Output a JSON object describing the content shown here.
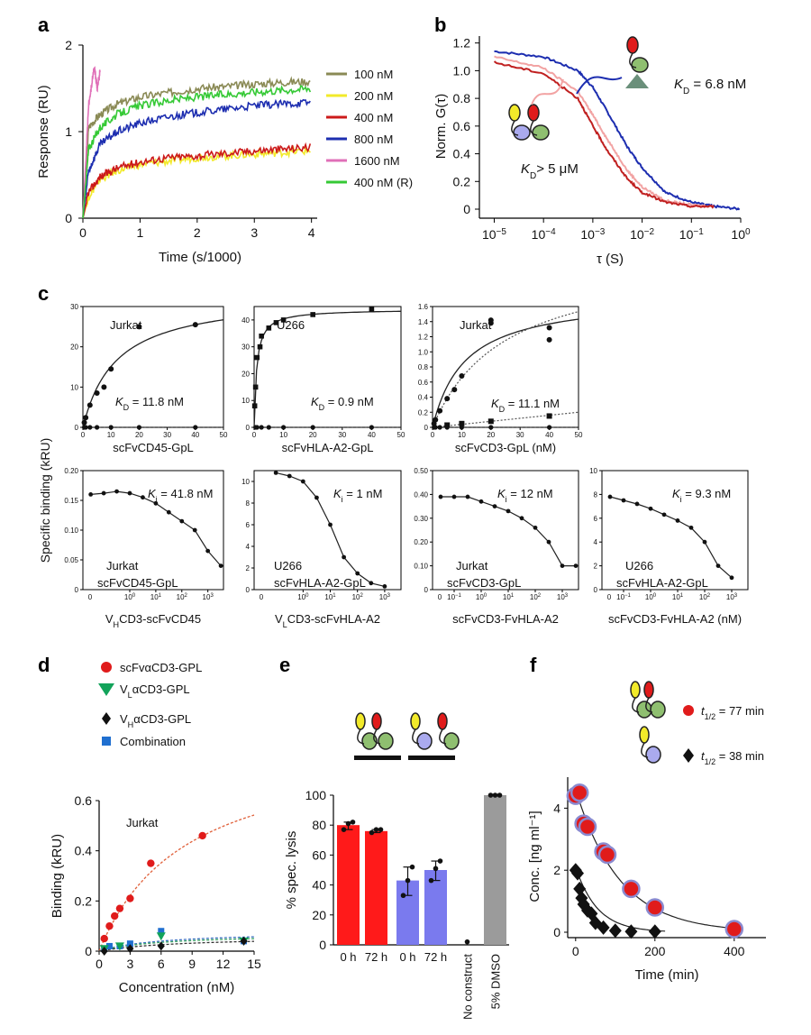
{
  "panels": {
    "a": "a",
    "b": "b",
    "c": "c",
    "d": "d",
    "e": "e",
    "f": "f"
  },
  "colors": {
    "red": "#e01b1b",
    "blue": "#1d2eb0",
    "green": "#35c935",
    "pink": "#e070b8",
    "olive": "#8a8a55",
    "yellow": "#f2ea2a",
    "gray": "#9b9b9b",
    "lilac": "#7d7de8",
    "salmon": "#f2a3a3"
  },
  "chart_data": [
    {
      "id": "a",
      "type": "line",
      "xlabel": "Time (s/1000)",
      "ylabel": "Response (RU)",
      "xlim": [
        0,
        4.1
      ],
      "ylim": [
        0,
        2
      ],
      "xticks": [
        0,
        1,
        2,
        3,
        4
      ],
      "yticks": [
        0,
        1,
        2
      ],
      "series": [
        {
          "name": "100 nM",
          "color": "#8a8a55",
          "x": [
            0,
            0.1,
            0.3,
            0.6,
            1,
            1.5,
            2,
            2.5,
            3,
            3.5,
            4
          ],
          "y": [
            0,
            1.05,
            1.2,
            1.32,
            1.4,
            1.45,
            1.5,
            1.52,
            1.55,
            1.57,
            1.58
          ]
        },
        {
          "name": "200 nM",
          "color": "#f2ea2a",
          "x": [
            0,
            0.1,
            0.3,
            0.6,
            1,
            1.5,
            2,
            2.5,
            3,
            3.5,
            4
          ],
          "y": [
            0,
            0.25,
            0.45,
            0.55,
            0.62,
            0.66,
            0.7,
            0.72,
            0.74,
            0.76,
            0.78
          ]
        },
        {
          "name": "400 nM",
          "color": "#cc1a1a",
          "x": [
            0,
            0.1,
            0.3,
            0.6,
            1,
            1.5,
            2,
            2.5,
            3,
            3.5,
            4
          ],
          "y": [
            0,
            0.3,
            0.48,
            0.58,
            0.65,
            0.7,
            0.72,
            0.75,
            0.78,
            0.8,
            0.82
          ]
        },
        {
          "name": "800 nM",
          "color": "#1d2eb0",
          "x": [
            0,
            0.1,
            0.3,
            0.6,
            1,
            1.5,
            2,
            2.5,
            3,
            3.5,
            4
          ],
          "y": [
            0,
            0.55,
            0.85,
            1.0,
            1.1,
            1.17,
            1.22,
            1.26,
            1.3,
            1.32,
            1.34
          ]
        },
        {
          "name": "1600 nM",
          "color": "#e070b8",
          "x": [
            0,
            0.1,
            0.2,
            0.25,
            0.3
          ],
          "y": [
            0,
            1.3,
            1.75,
            1.5,
            1.7
          ]
        },
        {
          "name": "400 nM (R)",
          "color": "#35c935",
          "x": [
            0,
            0.1,
            0.3,
            0.6,
            1,
            1.5,
            2,
            2.5,
            3,
            3.5,
            4
          ],
          "y": [
            0,
            0.8,
            1.05,
            1.2,
            1.3,
            1.36,
            1.4,
            1.43,
            1.46,
            1.48,
            1.5
          ]
        }
      ]
    },
    {
      "id": "b",
      "type": "line",
      "xlabel": "τ (S)",
      "ylabel": "Norm. G(τ)",
      "xscale": "log",
      "xlim": [
        5e-06,
        1
      ],
      "ylim": [
        0,
        1.25
      ],
      "xticks_exp": [
        -5,
        -4,
        -3,
        -2,
        -1,
        0
      ],
      "yticks": [
        0,
        0.2,
        0.4,
        0.6,
        0.8,
        1.0,
        1.2
      ],
      "annotations": [
        {
          "text": "K_D = 6.8 nM"
        },
        {
          "text": "K_D > 5 μM"
        }
      ],
      "series": [
        {
          "color": "#1d2eb0",
          "x": [
            1e-05,
            0.0001,
            0.0005,
            0.001,
            0.002,
            0.005,
            0.01,
            0.03,
            0.1,
            0.3,
            1
          ],
          "y": [
            1.14,
            1.1,
            1.0,
            0.88,
            0.7,
            0.45,
            0.3,
            0.12,
            0.05,
            0.02,
            0
          ]
        },
        {
          "color": "#f2a3a3",
          "x": [
            1e-05,
            0.0001,
            0.0005,
            0.001,
            0.002,
            0.005,
            0.01,
            0.03,
            0.1,
            0.3
          ],
          "y": [
            1.1,
            1.02,
            0.85,
            0.68,
            0.5,
            0.28,
            0.16,
            0.06,
            0.03,
            0.02
          ]
        },
        {
          "color": "#c02020",
          "x": [
            1e-05,
            0.0001,
            0.0005,
            0.001,
            0.002,
            0.005,
            0.01,
            0.03,
            0.1,
            0.3
          ],
          "y": [
            1.06,
            0.98,
            0.8,
            0.6,
            0.42,
            0.22,
            0.12,
            0.05,
            0.02,
            0.02
          ]
        }
      ]
    }
  ],
  "c_top": [
    {
      "cell": "Jurkat",
      "kd": "11.8 nM",
      "xlabel": "scFvCD45-GpL",
      "xlim": [
        0,
        50
      ],
      "ylim": [
        0,
        30
      ],
      "yticks": [
        0,
        10,
        20,
        30
      ],
      "bmax": 33,
      "kd_num": 11.8,
      "points": [
        [
          0.5,
          1.2
        ],
        [
          1,
          2.4
        ],
        [
          2.5,
          5.5
        ],
        [
          5,
          8.5
        ],
        [
          7.5,
          10
        ],
        [
          10,
          14.5
        ],
        [
          20,
          25
        ],
        [
          40,
          25.5
        ]
      ]
    },
    {
      "cell": "U266",
      "kd": "0.9 nM",
      "xlabel": "scFvHLA-A2-GpL",
      "xlim": [
        0,
        50
      ],
      "ylim": [
        0,
        45
      ],
      "yticks": [
        0,
        10,
        20,
        30,
        40
      ],
      "bmax": 44,
      "kd_num": 0.9,
      "points": [
        [
          0.2,
          8
        ],
        [
          0.5,
          15
        ],
        [
          1,
          26
        ],
        [
          2,
          30
        ],
        [
          2.5,
          34
        ],
        [
          5,
          37
        ],
        [
          7.5,
          39
        ],
        [
          10,
          40
        ],
        [
          20,
          42
        ],
        [
          40,
          44
        ]
      ]
    },
    {
      "cell": "Jurkat",
      "kd": "11.1 nM",
      "xlabel": "scFvCD3-GpL (nM)",
      "xlim": [
        0,
        50
      ],
      "ylim": [
        0,
        1.6
      ],
      "yticks": [
        0,
        0.2,
        0.4,
        0.6,
        0.8,
        1.0,
        1.2,
        1.4,
        1.6
      ],
      "bmax": 1.75,
      "kd_num": 11.1,
      "points": [
        [
          0.5,
          0.05
        ],
        [
          1,
          0.1
        ],
        [
          2.5,
          0.22
        ],
        [
          5,
          0.38
        ],
        [
          7.5,
          0.5
        ],
        [
          10,
          0.68
        ],
        [
          20,
          1.38
        ],
        [
          20,
          1.42
        ],
        [
          40,
          1.32
        ],
        [
          40,
          1.16
        ]
      ]
    }
  ],
  "c_bottom": [
    {
      "ki": "41.8 nM",
      "cell": "Jurkat",
      "sub": "scFvCD45-GpL",
      "xlabel": "V_HCD3-scFvCD45",
      "ylim": [
        0,
        0.2
      ],
      "yticks": [
        0,
        0.05,
        0.1,
        0.15,
        0.2
      ],
      "xexp": [
        0,
        1,
        2,
        3
      ],
      "points": [
        [
          -1.5,
          0.16
        ],
        [
          -1,
          0.162
        ],
        [
          -0.5,
          0.165
        ],
        [
          0,
          0.162
        ],
        [
          0.5,
          0.155
        ],
        [
          1,
          0.145
        ],
        [
          1.5,
          0.13
        ],
        [
          2,
          0.115
        ],
        [
          2.5,
          0.1
        ],
        [
          3,
          0.065
        ],
        [
          3.5,
          0.04
        ]
      ]
    },
    {
      "ki": "1 nM",
      "cell": "U266",
      "sub": "scFvHLA-A2-GpL",
      "xlabel": "V_LCD3-scFvHLA-A2",
      "ylim": [
        0,
        11
      ],
      "yticks": [
        0,
        2,
        4,
        6,
        8,
        10
      ],
      "xexp": [
        0,
        1,
        2,
        3
      ],
      "points": [
        [
          -1,
          10.8
        ],
        [
          -0.5,
          10.5
        ],
        [
          0,
          10
        ],
        [
          0.5,
          8.5
        ],
        [
          1,
          6
        ],
        [
          1.5,
          3
        ],
        [
          2,
          1.5
        ],
        [
          2.5,
          0.6
        ],
        [
          3,
          0.3
        ]
      ]
    },
    {
      "ki": "12 nM",
      "cell": "Jurkat",
      "sub": "scFvCD3-GpL",
      "xlabel": "scFvCD3-FvHLA-A2",
      "ylim": [
        0,
        0.5
      ],
      "yticks": [
        0,
        0.1,
        0.2,
        0.3,
        0.4,
        0.5
      ],
      "xexp": [
        -1,
        0,
        1,
        2,
        3
      ],
      "points": [
        [
          -1.5,
          0.39
        ],
        [
          -1,
          0.39
        ],
        [
          -0.5,
          0.39
        ],
        [
          0,
          0.37
        ],
        [
          0.5,
          0.35
        ],
        [
          1,
          0.33
        ],
        [
          1.5,
          0.3
        ],
        [
          2,
          0.26
        ],
        [
          2.5,
          0.2
        ],
        [
          3,
          0.1
        ],
        [
          3.5,
          0.1
        ]
      ]
    },
    {
      "ki": "9.3 nM",
      "cell": "U266",
      "sub": "scFvHLA-A2-GpL",
      "xlabel": "scFvCD3-FvHLA-A2 (nM)",
      "ylim": [
        0,
        10
      ],
      "yticks": [
        0,
        2,
        4,
        6,
        8,
        10
      ],
      "xexp": [
        -1,
        0,
        1,
        2,
        3
      ],
      "points": [
        [
          -1.5,
          7.8
        ],
        [
          -1,
          7.5
        ],
        [
          -0.5,
          7.2
        ],
        [
          0,
          6.8
        ],
        [
          0.5,
          6.3
        ],
        [
          1,
          5.8
        ],
        [
          1.5,
          5.2
        ],
        [
          2,
          4
        ],
        [
          2.5,
          2
        ],
        [
          3,
          1
        ]
      ]
    }
  ],
  "c_ylabel": "Specific binding (kRU)",
  "d": {
    "legend": [
      {
        "label": "scFvαCD3-GPL",
        "color": "#e01b1b",
        "shape": "circle"
      },
      {
        "label": "V_LαCD3-GPL",
        "color": "#12a35a",
        "shape": "tri"
      },
      {
        "label": "V_HαCD3-GPL",
        "color": "#111",
        "shape": "diamond"
      },
      {
        "label": "Combination",
        "color": "#1f6fd0",
        "shape": "square"
      }
    ],
    "cell": "Jurkat",
    "xlabel": "Concentration (nM)",
    "ylabel": "Binding (kRU)",
    "xlim": [
      0,
      15
    ],
    "ylim": [
      0,
      0.6
    ],
    "xticks": [
      0,
      3,
      6,
      9,
      12,
      15
    ],
    "yticks": [
      0,
      0.2,
      0.4,
      0.6
    ],
    "red": [
      [
        0.5,
        0.05
      ],
      [
        1,
        0.1
      ],
      [
        1.5,
        0.14
      ],
      [
        2,
        0.17
      ],
      [
        3,
        0.21
      ],
      [
        5,
        0.35
      ],
      [
        10,
        0.46
      ]
    ],
    "blue": [
      [
        0.5,
        0.01
      ],
      [
        1,
        0.02
      ],
      [
        2,
        0.02
      ],
      [
        3,
        0.03
      ],
      [
        6,
        0.08
      ],
      [
        14,
        0.04
      ]
    ],
    "green": [
      [
        0.5,
        0.01
      ],
      [
        2,
        0.02
      ],
      [
        6,
        0.06
      ],
      [
        14,
        0.04
      ]
    ],
    "black": [
      [
        0.5,
        0.0
      ],
      [
        3,
        0.01
      ],
      [
        6,
        0.02
      ],
      [
        14,
        0.04
      ]
    ]
  },
  "e": {
    "ylabel": "% spec. lysis",
    "ylim": [
      0,
      100
    ],
    "yticks": [
      0,
      20,
      40,
      60,
      80,
      100
    ],
    "bars": [
      {
        "label": "0 h",
        "value": 80,
        "color": "#ff1a1a",
        "pts": [
          77,
          81,
          82
        ]
      },
      {
        "label": "72 h",
        "value": 76,
        "color": "#ff1a1a",
        "pts": [
          75,
          77,
          77
        ]
      },
      {
        "label": "0 h",
        "value": 43,
        "color": "#7a7aee",
        "pts": [
          33,
          43,
          52
        ]
      },
      {
        "label": "72 h",
        "value": 50,
        "color": "#7a7aee",
        "pts": [
          43,
          51,
          56
        ]
      },
      {
        "label": "No construct",
        "value": 0,
        "color": "#7a7aee",
        "pts": [
          2
        ]
      },
      {
        "label": "5% DMSO",
        "value": 100,
        "color": "#9b9b9b",
        "pts": [
          100,
          100,
          100
        ]
      }
    ]
  },
  "f": {
    "t1": "t1/2 = 77 min",
    "t2": "t1/2 = 38 min",
    "xlabel": "Time (min)",
    "ylabel": "Conc. [ng ml⁻¹]",
    "xlim": [
      0,
      500
    ],
    "ylim": [
      0,
      5
    ],
    "xticks": [
      0,
      200,
      400
    ],
    "yticks": [
      0,
      2,
      4
    ],
    "red": [
      [
        0,
        4.4
      ],
      [
        10,
        4.5
      ],
      [
        20,
        3.5
      ],
      [
        30,
        3.4
      ],
      [
        70,
        2.6
      ],
      [
        80,
        2.5
      ],
      [
        140,
        1.4
      ],
      [
        200,
        0.8
      ],
      [
        400,
        0.1
      ]
    ],
    "black": [
      [
        0,
        2.0
      ],
      [
        5,
        1.9
      ],
      [
        10,
        1.4
      ],
      [
        15,
        1.1
      ],
      [
        20,
        0.9
      ],
      [
        30,
        0.7
      ],
      [
        40,
        0.6
      ],
      [
        50,
        0.3
      ],
      [
        70,
        0.15
      ],
      [
        100,
        0.05
      ],
      [
        140,
        0.02
      ],
      [
        200,
        0.02
      ]
    ]
  }
}
